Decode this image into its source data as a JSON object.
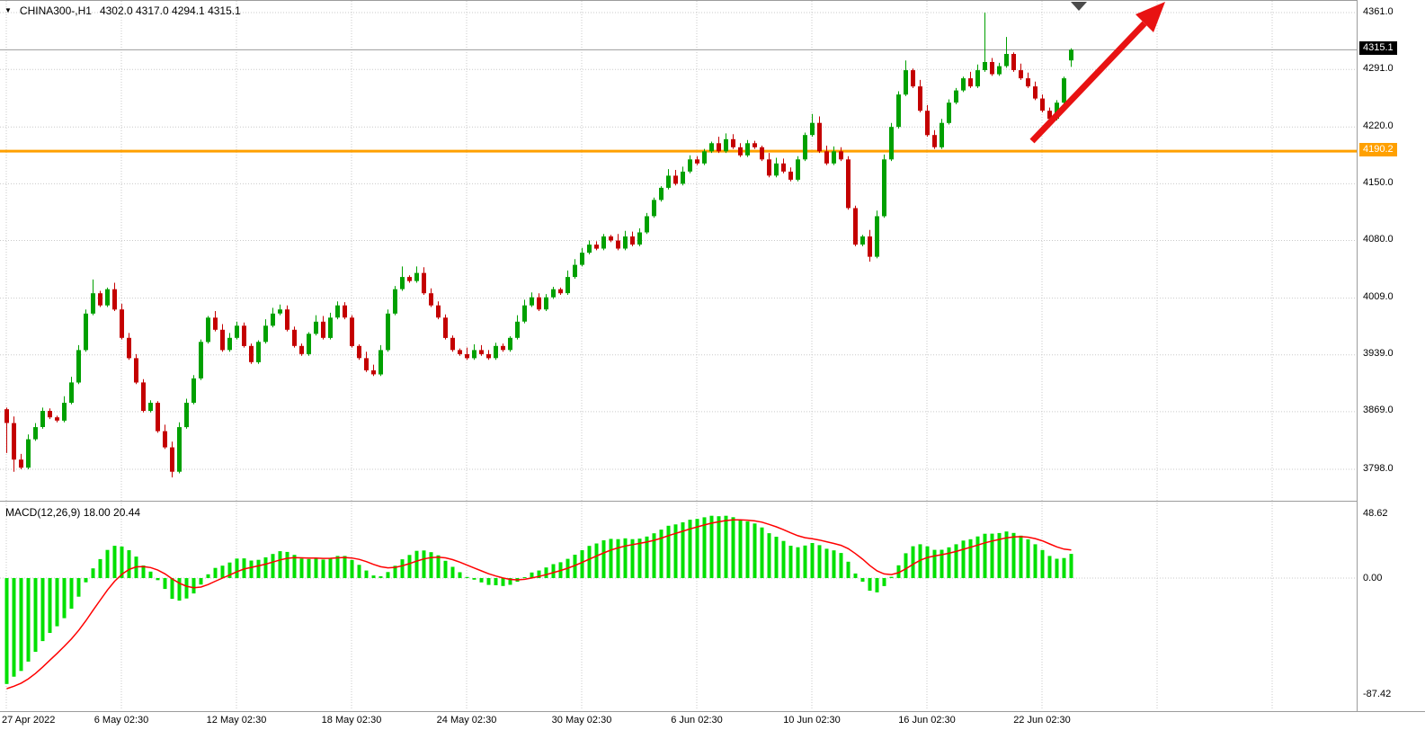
{
  "header": {
    "symbol_dropdown": "▼",
    "symbol_info": "CHINA300-,H1",
    "ohlc": "4302.0 4317.0 4294.1 4315.1"
  },
  "indicator": {
    "label": "MACD(12,26,9) 18.00 20.44"
  },
  "price_axis": {
    "current_price": "4315.1",
    "hline_price": "4190.2"
  },
  "time_axis": {
    "labels": [
      "27 Apr 2022",
      "6 May 02:30",
      "12 May 02:30",
      "18 May 02:30",
      "24 May 02:30",
      "30 May 02:30",
      "6 Jun 02:30",
      "10 Jun 02:30",
      "16 Jun 02:30",
      "22 Jun 02:30"
    ]
  },
  "colors": {
    "bull": "#00A000",
    "bear": "#C40000",
    "grid": "#c9c9c9",
    "orange_line": "#FFA000",
    "current_line": "#9b9b9b",
    "macd_hist": "#00E000",
    "macd_signal": "#FF0000",
    "arrow": "#E81212",
    "tag_black_bg": "#000000"
  },
  "chart_data": {
    "type": "candlestick",
    "symbol": "CHINA300-",
    "timeframe": "H1",
    "title": "CHINA300-,H1",
    "last_ohlc": {
      "open": 4302.0,
      "high": 4317.0,
      "low": 4294.1,
      "close": 4315.1
    },
    "price_ticks": [
      4361.0,
      4291.0,
      4220.0,
      4150.0,
      4080.0,
      4009.0,
      3939.0,
      3869.0,
      3798.0
    ],
    "current_price": 4315.1,
    "orange_line": 4190.2,
    "first_open": 3872,
    "closes": [
      3855,
      3810,
      3800,
      3835,
      3850,
      3870,
      3862,
      3858,
      3880,
      3905,
      3945,
      3990,
      4015,
      4000,
      4020,
      3995,
      3960,
      3935,
      3905,
      3870,
      3880,
      3845,
      3825,
      3795,
      3850,
      3880,
      3910,
      3955,
      3985,
      3970,
      3945,
      3960,
      3975,
      3950,
      3930,
      3955,
      3975,
      3990,
      3995,
      3970,
      3950,
      3940,
      3965,
      3980,
      3960,
      3985,
      4000,
      3985,
      3950,
      3935,
      3920,
      3915,
      3945,
      3990,
      4020,
      4035,
      4030,
      4040,
      4015,
      4000,
      3985,
      3960,
      3945,
      3940,
      3935,
      3945,
      3940,
      3935,
      3950,
      3945,
      3960,
      3980,
      4000,
      4010,
      3995,
      4010,
      4020,
      4015,
      4035,
      4050,
      4065,
      4075,
      4070,
      4085,
      4080,
      4070,
      4085,
      4075,
      4090,
      4110,
      4130,
      4145,
      4160,
      4150,
      4165,
      4180,
      4175,
      4190,
      4200,
      4190,
      4205,
      4195,
      4185,
      4200,
      4195,
      4180,
      4160,
      4175,
      4165,
      4155,
      4180,
      4210,
      4225,
      4190,
      4175,
      4190,
      4180,
      4120,
      4075,
      4085,
      4060,
      4110,
      4180,
      4220,
      4260,
      4290,
      4270,
      4240,
      4210,
      4195,
      4225,
      4250,
      4265,
      4280,
      4270,
      4290,
      4300,
      4285,
      4295,
      4310,
      4290,
      4280,
      4270,
      4255,
      4240,
      4230,
      4250,
      4280,
      4315.1
    ],
    "open_overrides": {
      "148": 4302.0
    },
    "wick_overrides": {
      "0": {
        "low": 3818
      },
      "1": {
        "low": 3795
      },
      "12": {
        "high": 4032
      },
      "23": {
        "low": 3788
      },
      "55": {
        "high": 4048
      },
      "112": {
        "high": 4236
      },
      "120": {
        "low": 4054
      },
      "125": {
        "high": 4302
      },
      "136": {
        "high": 4361
      },
      "139": {
        "high": 4331
      },
      "148": {
        "high": 4317.0,
        "low": 4294.1
      }
    },
    "time_label_bars": [
      0,
      16,
      32,
      48,
      64,
      80,
      96,
      112,
      128,
      144
    ],
    "macd": {
      "params": [
        12,
        26,
        9
      ],
      "current_values": [
        18.0,
        20.44
      ],
      "scale_ticks": [
        48.62,
        0.0,
        -87.42
      ],
      "ema_seeds": {
        "fast": 3808,
        "slow": 3898,
        "signal": -84
      }
    }
  }
}
